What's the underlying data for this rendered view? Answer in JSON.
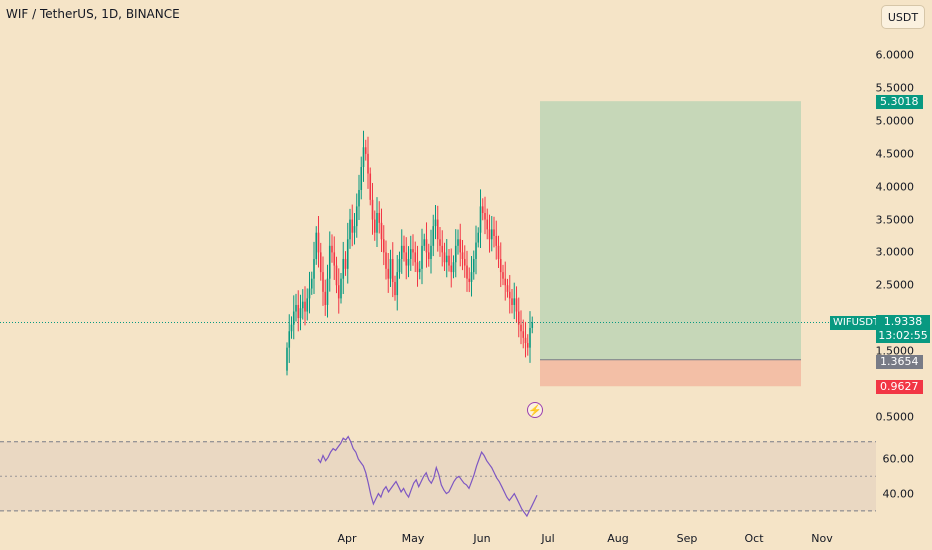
{
  "header": {
    "title": "WIF / TetherUS, 1D, BINANCE",
    "currency_button": "USDT"
  },
  "badges": {
    "target": "5.3018",
    "entry": "1.3654",
    "stop": "0.9627",
    "symbol": "WIFUSDT",
    "last_price": "1.9338",
    "countdown": "13:02:55"
  },
  "colors": {
    "background": "#f5e4c7",
    "up": "#089981",
    "down": "#f23645",
    "target_zone": "#c6d7b8",
    "stop_zone": "#f3bfa6",
    "rsi_line": "#7e57c2",
    "rsi_band": "#ead8c2"
  },
  "icons": {
    "alert": "lightning-icon"
  },
  "chart_data": [
    {
      "type": "candlestick",
      "title": "WIF / TetherUS, 1D, BINANCE",
      "y_ticks": [
        "6.0000",
        "5.5000",
        "5.0000",
        "4.5000",
        "4.0000",
        "3.5000",
        "3.0000",
        "2.5000",
        "1.5000",
        "0.5000"
      ],
      "x_ticks": [
        "Apr",
        "May",
        "Jun",
        "Jul",
        "Aug",
        "Sep",
        "Oct",
        "Nov"
      ],
      "ylim": [
        0.3,
        6.3
      ],
      "last_price": 1.9338,
      "position": {
        "entry": 1.3654,
        "target": 5.3018,
        "stop": 0.9627
      },
      "closes": [
        1.55,
        1.8,
        1.9,
        2.1,
        2.2,
        2.0,
        2.15,
        2.25,
        2.1,
        2.3,
        2.45,
        2.6,
        2.9,
        3.3,
        3.0,
        2.7,
        2.4,
        2.2,
        2.6,
        3.1,
        3.0,
        2.8,
        2.5,
        2.3,
        2.6,
        2.9,
        2.75,
        3.2,
        3.5,
        3.3,
        3.4,
        3.7,
        3.95,
        4.3,
        4.6,
        4.5,
        4.2,
        3.8,
        3.5,
        3.3,
        3.6,
        3.45,
        3.2,
        3.0,
        2.75,
        2.6,
        2.9,
        2.55,
        2.35,
        2.7,
        2.9,
        3.1,
        3.0,
        2.8,
        2.9,
        3.05,
        3.0,
        2.85,
        2.7,
        2.75,
        3.1,
        3.2,
        3.0,
        2.9,
        3.1,
        3.4,
        3.5,
        3.2,
        3.1,
        3.0,
        2.85,
        2.95,
        2.8,
        2.7,
        2.85,
        3.1,
        3.2,
        3.0,
        2.9,
        2.8,
        2.6,
        2.55,
        2.7,
        2.9,
        3.15,
        3.3,
        3.7,
        3.6,
        3.5,
        3.35,
        3.2,
        3.35,
        3.25,
        3.1,
        2.9,
        2.7,
        2.6,
        2.5,
        2.4,
        2.3,
        2.2,
        2.3,
        2.1,
        1.9,
        1.8,
        1.7,
        1.62,
        1.55,
        1.85,
        1.9338
      ]
    },
    {
      "type": "line",
      "title": "",
      "y_ticks": [
        "60.00",
        "40.00"
      ],
      "bands": [
        70,
        30
      ],
      "midline": 50,
      "ylim": [
        22,
        78
      ],
      "values": [
        60,
        58,
        62,
        59,
        61,
        64,
        66,
        65,
        67,
        69,
        72,
        71,
        73,
        70,
        66,
        64,
        60,
        58,
        56,
        52,
        46,
        39,
        34,
        37,
        40,
        38,
        42,
        44,
        41,
        43,
        45,
        47,
        44,
        41,
        43,
        40,
        38,
        42,
        46,
        48,
        44,
        47,
        50,
        52,
        48,
        46,
        49,
        55,
        51,
        45,
        42,
        40,
        41,
        44,
        47,
        49,
        50,
        48,
        46,
        45,
        43,
        47,
        51,
        56,
        60,
        64,
        62,
        59,
        57,
        55,
        52,
        49,
        47,
        44,
        41,
        38,
        36,
        38,
        40,
        37,
        34,
        31,
        29,
        27,
        30,
        33,
        36,
        39
      ]
    }
  ]
}
